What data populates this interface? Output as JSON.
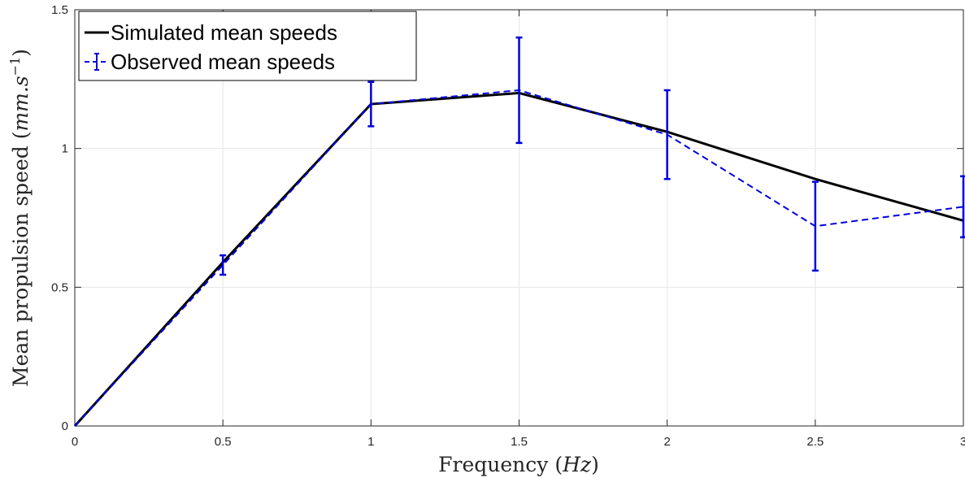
{
  "chart_data": {
    "type": "line",
    "title": "",
    "xlabel": "Frequency (Hz)",
    "ylabel": "Mean propulsion speed (mm.s⁻¹)",
    "xlim": [
      0,
      3
    ],
    "ylim": [
      0,
      1.5
    ],
    "grid": true,
    "legend_position": "top-left",
    "x_ticks": [
      "0",
      "0.5",
      "1",
      "1.5",
      "2",
      "2.5",
      "3"
    ],
    "y_ticks": [
      "0",
      "0.5",
      "1",
      "1.5"
    ],
    "series": [
      {
        "name": "Simulated mean speeds",
        "style": "solid",
        "color": "#000000",
        "x": [
          0,
          0.5,
          1,
          1.5,
          2,
          2.5,
          3
        ],
        "y": [
          0,
          0.59,
          1.16,
          1.2,
          1.06,
          0.89,
          0.74
        ]
      },
      {
        "name": "Observed mean speeds",
        "style": "dashed",
        "color": "#0000dd",
        "x": [
          0,
          0.5,
          1,
          1.5,
          2,
          2.5,
          3
        ],
        "y": [
          0,
          0.58,
          1.16,
          1.21,
          1.05,
          0.72,
          0.79
        ],
        "error": [
          0,
          0.035,
          0.08,
          0.19,
          0.16,
          0.16,
          0.11
        ]
      }
    ]
  }
}
